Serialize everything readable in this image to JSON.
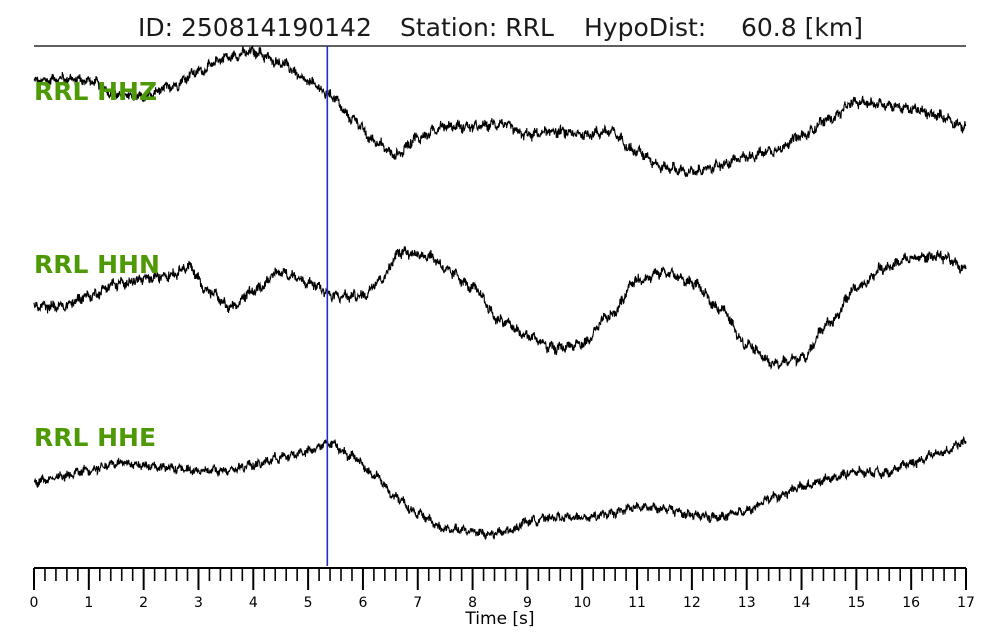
{
  "header": {
    "id_text": "ID: 250814190142",
    "station_text": "Station: RRL",
    "hypodist_text": "HypoDist:",
    "hypodist_value": "60.8 [km]"
  },
  "chart_data": {
    "type": "line",
    "title": "ID: 250814190142   Station: RRL   HypoDist:    60.8 [km]",
    "xlabel": "Time [s]",
    "ylabel": "",
    "xlim": [
      0,
      17
    ],
    "x_ticks_major": [
      0,
      1,
      2,
      3,
      4,
      5,
      6,
      7,
      8,
      9,
      10,
      11,
      12,
      13,
      14,
      15,
      16,
      17
    ],
    "x_minor_step": 0.2,
    "pick_time": 5.35,
    "colors": {
      "trace": "#000000",
      "label": "#4e9a06",
      "pick": "#1f2fd0"
    },
    "series": [
      {
        "name": "RRL HHZ",
        "noise": 0.1,
        "wiggle": 0.05,
        "points": [
          [
            0,
            0.62
          ],
          [
            0.5,
            0.66
          ],
          [
            1,
            0.63
          ],
          [
            1.5,
            0.46
          ],
          [
            2,
            0.42
          ],
          [
            2.5,
            0.56
          ],
          [
            3,
            0.75
          ],
          [
            3.5,
            0.93
          ],
          [
            4,
            1.0
          ],
          [
            4.5,
            0.86
          ],
          [
            5,
            0.62
          ],
          [
            5.4,
            0.45
          ],
          [
            5.8,
            0.15
          ],
          [
            6.2,
            -0.14
          ],
          [
            6.6,
            -0.32
          ],
          [
            7,
            -0.1
          ],
          [
            7.5,
            0.05
          ],
          [
            8,
            0.04
          ],
          [
            8.5,
            0.08
          ],
          [
            9,
            -0.06
          ],
          [
            9.5,
            -0.02
          ],
          [
            10,
            -0.06
          ],
          [
            10.5,
            -0.02
          ],
          [
            11,
            -0.28
          ],
          [
            11.5,
            -0.48
          ],
          [
            12,
            -0.54
          ],
          [
            12.5,
            -0.46
          ],
          [
            13,
            -0.34
          ],
          [
            13.5,
            -0.26
          ],
          [
            14,
            -0.08
          ],
          [
            14.5,
            0.14
          ],
          [
            15,
            0.36
          ],
          [
            15.5,
            0.33
          ],
          [
            16,
            0.27
          ],
          [
            16.5,
            0.18
          ],
          [
            17,
            0.04
          ]
        ]
      },
      {
        "name": "RRL HHN",
        "noise": 0.1,
        "wiggle": 0.05,
        "points": [
          [
            0,
            -0.08
          ],
          [
            0.5,
            -0.08
          ],
          [
            1,
            0.05
          ],
          [
            1.5,
            0.2
          ],
          [
            2,
            0.26
          ],
          [
            2.5,
            0.32
          ],
          [
            2.8,
            0.42
          ],
          [
            3.2,
            0.1
          ],
          [
            3.6,
            -0.1
          ],
          [
            4,
            0.12
          ],
          [
            4.5,
            0.35
          ],
          [
            5,
            0.22
          ],
          [
            5.5,
            0.05
          ],
          [
            6,
            0.05
          ],
          [
            6.3,
            0.25
          ],
          [
            6.7,
            0.6
          ],
          [
            7.2,
            0.55
          ],
          [
            7.6,
            0.35
          ],
          [
            8,
            0.15
          ],
          [
            8.5,
            -0.25
          ],
          [
            9,
            -0.45
          ],
          [
            9.5,
            -0.6
          ],
          [
            10,
            -0.55
          ],
          [
            10.5,
            -0.2
          ],
          [
            11,
            0.25
          ],
          [
            11.5,
            0.35
          ],
          [
            12,
            0.22
          ],
          [
            12.5,
            -0.1
          ],
          [
            13,
            -0.55
          ],
          [
            13.5,
            -0.8
          ],
          [
            14,
            -0.72
          ],
          [
            14.5,
            -0.3
          ],
          [
            15,
            0.15
          ],
          [
            15.5,
            0.4
          ],
          [
            16,
            0.52
          ],
          [
            16.5,
            0.55
          ],
          [
            17,
            0.4
          ]
        ]
      },
      {
        "name": "RRL HHE",
        "noise": 0.1,
        "wiggle": 0.05,
        "points": [
          [
            0,
            -0.02
          ],
          [
            0.5,
            0.05
          ],
          [
            1,
            0.15
          ],
          [
            1.5,
            0.25
          ],
          [
            2,
            0.22
          ],
          [
            2.5,
            0.18
          ],
          [
            3,
            0.13
          ],
          [
            3.5,
            0.15
          ],
          [
            4,
            0.22
          ],
          [
            4.5,
            0.33
          ],
          [
            5,
            0.42
          ],
          [
            5.4,
            0.55
          ],
          [
            5.8,
            0.35
          ],
          [
            6.2,
            0.08
          ],
          [
            6.6,
            -0.25
          ],
          [
            7,
            -0.5
          ],
          [
            7.5,
            -0.72
          ],
          [
            8,
            -0.75
          ],
          [
            8.3,
            -0.8
          ],
          [
            8.7,
            -0.75
          ],
          [
            9,
            -0.6
          ],
          [
            9.5,
            -0.55
          ],
          [
            10,
            -0.55
          ],
          [
            10.5,
            -0.5
          ],
          [
            11,
            -0.4
          ],
          [
            11.5,
            -0.42
          ],
          [
            12,
            -0.52
          ],
          [
            12.5,
            -0.55
          ],
          [
            13,
            -0.45
          ],
          [
            13.5,
            -0.25
          ],
          [
            14,
            -0.1
          ],
          [
            14.5,
            0.02
          ],
          [
            15,
            0.12
          ],
          [
            15.5,
            0.1
          ],
          [
            16,
            0.25
          ],
          [
            16.5,
            0.4
          ],
          [
            17,
            0.55
          ]
        ]
      }
    ]
  }
}
